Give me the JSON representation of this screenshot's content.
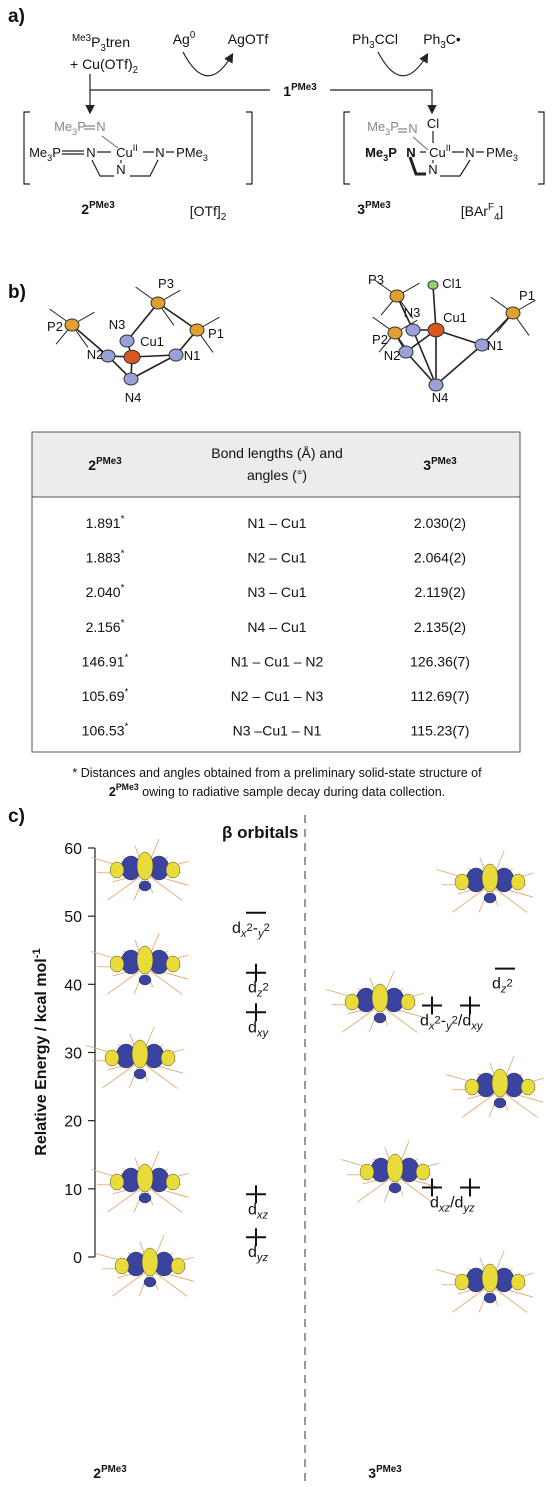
{
  "panel_a": {
    "label": "a)",
    "reagent_left": [
      [
        [
          "Me3",
          "sup"
        ],
        [
          "P",
          ""
        ],
        [
          "3",
          "sub"
        ],
        [
          "tren",
          ""
        ]
      ],
      [
        [
          "+ Cu(OTf)",
          ""
        ],
        [
          "2",
          "sub"
        ]
      ]
    ],
    "reagent_ag": [
      [
        "Ag",
        ""
      ],
      [
        "0",
        "sup"
      ]
    ],
    "product_ag": [
      [
        "AgOTf",
        ""
      ]
    ],
    "reagent_trityl": [
      [
        "Ph",
        ""
      ],
      [
        "3",
        "sub"
      ],
      [
        "CCl",
        ""
      ]
    ],
    "product_trityl": [
      [
        "Ph",
        ""
      ],
      [
        "3",
        "sub"
      ],
      [
        "C•",
        ""
      ]
    ],
    "starting": [
      [
        "1",
        "b"
      ],
      [
        "PMe3",
        "b sup"
      ]
    ],
    "left_complex": {
      "atoms": [
        [
          [
            "Me",
            "g"
          ],
          [
            "3",
            "g sub"
          ],
          [
            "P",
            "g"
          ]
        ],
        [
          [
            "N",
            "g"
          ]
        ],
        [
          [
            "Me",
            ""
          ],
          [
            "3",
            "sub"
          ],
          [
            "P",
            ""
          ]
        ],
        [
          [
            "N",
            ""
          ]
        ],
        [
          [
            "Cu",
            ""
          ],
          [
            "II",
            "sup"
          ]
        ],
        [
          [
            "N",
            ""
          ]
        ],
        [
          [
            "PMe",
            ""
          ],
          [
            "3",
            "sub"
          ]
        ],
        [
          [
            "N",
            ""
          ]
        ]
      ],
      "name": [
        [
          "2",
          "b"
        ],
        [
          "PMe3",
          "b sup"
        ]
      ],
      "counterion": [
        [
          "[OTf]",
          ""
        ],
        [
          "2",
          "sub"
        ]
      ]
    },
    "right_complex": {
      "atoms": [
        [
          [
            "Me",
            "g"
          ],
          [
            "3",
            "g sub"
          ],
          [
            "P",
            "g"
          ]
        ],
        [
          [
            "N",
            "g"
          ]
        ],
        [
          [
            "Cl",
            ""
          ]
        ],
        [
          [
            "Me",
            "b"
          ],
          [
            "3",
            "b sub"
          ],
          [
            "P",
            "b"
          ]
        ],
        [
          [
            "N",
            "b"
          ]
        ],
        [
          [
            "Cu",
            ""
          ],
          [
            "II",
            "sup"
          ]
        ],
        [
          [
            "N",
            ""
          ]
        ],
        [
          [
            "PMe",
            ""
          ],
          [
            "3",
            "sub"
          ]
        ],
        [
          [
            "N",
            ""
          ]
        ]
      ],
      "name": [
        [
          "3",
          "b"
        ],
        [
          "PMe3",
          "b sup"
        ]
      ],
      "counterion": [
        [
          "[BAr",
          ""
        ],
        [
          "F",
          "sup"
        ],
        [
          "4",
          "sub"
        ],
        [
          "]",
          ""
        ]
      ]
    }
  },
  "panel_b": {
    "label": "b)",
    "left_atoms": [
      "P2",
      "N3",
      "P3",
      "Cu1",
      "P1",
      "N2",
      "N1",
      "N4"
    ],
    "right_atoms": [
      "P3",
      "Cl1",
      "N3",
      "Cu1",
      "P1",
      "P2",
      "N2",
      "N1",
      "N4"
    ]
  },
  "table": {
    "col_left": [
      [
        "2",
        "b"
      ],
      [
        "PMe3",
        "b sup"
      ]
    ],
    "col_mid": [
      "Bond lengths (Å) and",
      "angles (°)"
    ],
    "col_right": [
      [
        "3",
        "b"
      ],
      [
        "PMe3",
        "b sup"
      ]
    ],
    "rows": [
      [
        [
          [
            "1.891",
            ""
          ],
          [
            "*",
            "sup"
          ]
        ],
        "N1 – Cu1",
        "2.030(2)"
      ],
      [
        [
          [
            "1.883",
            ""
          ],
          [
            "*",
            "sup"
          ]
        ],
        "N2 – Cu1",
        "2.064(2)"
      ],
      [
        [
          [
            "2.040",
            ""
          ],
          [
            "*",
            "sup"
          ]
        ],
        "N3 – Cu1",
        "2.119(2)"
      ],
      [
        [
          [
            "2.156",
            ""
          ],
          [
            "*",
            "sup"
          ]
        ],
        "N4 – Cu1",
        "2.135(2)"
      ],
      [
        [
          [
            "146.91",
            ""
          ],
          [
            "*",
            "sup"
          ]
        ],
        "N1 – Cu1 – N2",
        "126.36(7)"
      ],
      [
        [
          [
            "105.69",
            ""
          ],
          [
            "*",
            "sup"
          ]
        ],
        "N2 – Cu1 – N3",
        "112.69(7)"
      ],
      [
        [
          [
            "106.53",
            ""
          ],
          [
            "*",
            "sup"
          ]
        ],
        "N3 –Cu1 – N1",
        "115.23(7)"
      ]
    ]
  },
  "footnote": [
    [
      [
        "* Distances and angles obtained from a preliminary solid-state structure of",
        ""
      ]
    ],
    [
      [
        "2",
        "b"
      ],
      [
        "PMe3",
        "b sup"
      ],
      [
        " owing to radiative sample decay during data collection.",
        ""
      ]
    ]
  ],
  "panel_c": {
    "label": "c)",
    "title": "β orbitals",
    "y_axis_label": [
      [
        "Relative Energy / kcal mol",
        ""
      ],
      [
        "-1",
        "sup"
      ]
    ],
    "ylim": [
      0,
      60
    ],
    "yticks": [
      0,
      10,
      20,
      30,
      40,
      50,
      60
    ],
    "left": {
      "name": [
        [
          "2",
          "b"
        ],
        [
          "PMe3",
          "b sup"
        ]
      ],
      "levels": [
        {
          "label": [
            [
              "d",
              ""
            ],
            [
              "x",
              "sub i"
            ],
            [
              "2",
              "sub sup"
            ],
            [
              "-",
              ""
            ],
            [
              "y",
              "sub i"
            ],
            [
              "2",
              "sub sup"
            ]
          ],
          "energy": 50.5,
          "occupied": false,
          "degeneracy": 1
        },
        {
          "label": [
            [
              "d",
              ""
            ],
            [
              "z",
              "sub i"
            ],
            [
              "2",
              "sub sup"
            ]
          ],
          "energy": 41.7,
          "occupied": true,
          "degeneracy": 1
        },
        {
          "label": [
            [
              "d",
              ""
            ],
            [
              "xy",
              "sub i"
            ]
          ],
          "energy": 35.9,
          "occupied": true,
          "degeneracy": 1
        },
        {
          "label": [
            [
              "d",
              ""
            ],
            [
              "xz",
              "sub i"
            ]
          ],
          "energy": 9.2,
          "occupied": true,
          "degeneracy": 1
        },
        {
          "label": [
            [
              "d",
              ""
            ],
            [
              "yz",
              "sub i"
            ]
          ],
          "energy": 2.9,
          "occupied": true,
          "degeneracy": 1
        }
      ]
    },
    "right": {
      "name": [
        [
          "3",
          "b"
        ],
        [
          "PMe3",
          "b sup"
        ]
      ],
      "levels": [
        {
          "label": [
            [
              "d",
              ""
            ],
            [
              "z",
              "sub i"
            ],
            [
              "2",
              "sub sup"
            ]
          ],
          "energy": 42.3,
          "occupied": false,
          "degeneracy": 1
        },
        {
          "label": [
            [
              "d",
              ""
            ],
            [
              "x",
              "sub i"
            ],
            [
              "2",
              "sub sup"
            ],
            [
              "-",
              ""
            ],
            [
              "y",
              "sub i"
            ],
            [
              "2",
              "sub sup"
            ],
            [
              "/d",
              ""
            ],
            [
              "xy",
              "sub i"
            ]
          ],
          "energy": 36.9,
          "occupied": true,
          "degeneracy": 2
        },
        {
          "label": [
            [
              "d",
              ""
            ],
            [
              "xz",
              "sub i"
            ],
            [
              "/d",
              ""
            ],
            [
              "yz",
              "sub i"
            ]
          ],
          "energy": 10.2,
          "occupied": true,
          "degeneracy": 2
        }
      ]
    }
  }
}
